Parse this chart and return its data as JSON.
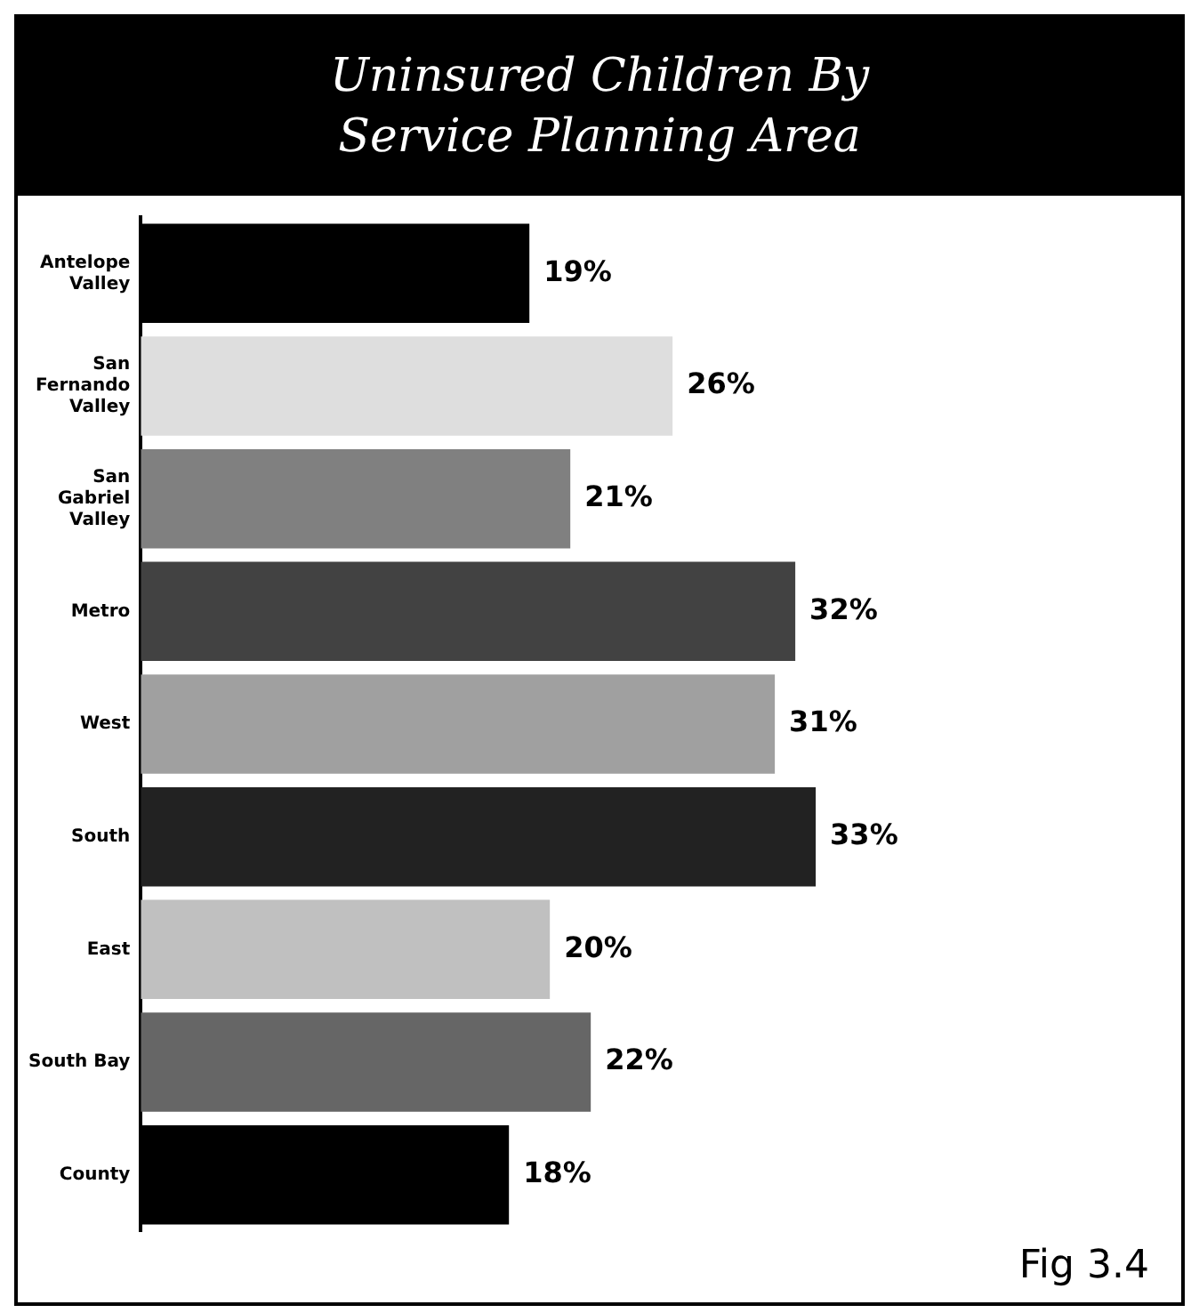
{
  "chart_data": {
    "type": "bar",
    "orientation": "horizontal",
    "tick_labels": "y",
    "title": "Uninsured Children By Service Planning Area",
    "categories": [
      "Antelope Valley",
      "San Fernando Valley",
      "San Gabriel Valley",
      "Metro",
      "West",
      "South",
      "East",
      "South Bay",
      "County"
    ],
    "values": [
      19,
      26,
      21,
      32,
      31,
      33,
      20,
      22,
      18
    ],
    "colors": [
      "#000000",
      "#dedede",
      "#808080",
      "#424242",
      "#a0a0a0",
      "#222222",
      "#c0c0c0",
      "#666666",
      "#000000"
    ],
    "value_labels": [
      "19%",
      "26%",
      "21%",
      "32%",
      "31%",
      "33%",
      "20%",
      "22%",
      "18%"
    ],
    "legend": false,
    "annotations": [
      "Fig 3.4"
    ]
  }
}
